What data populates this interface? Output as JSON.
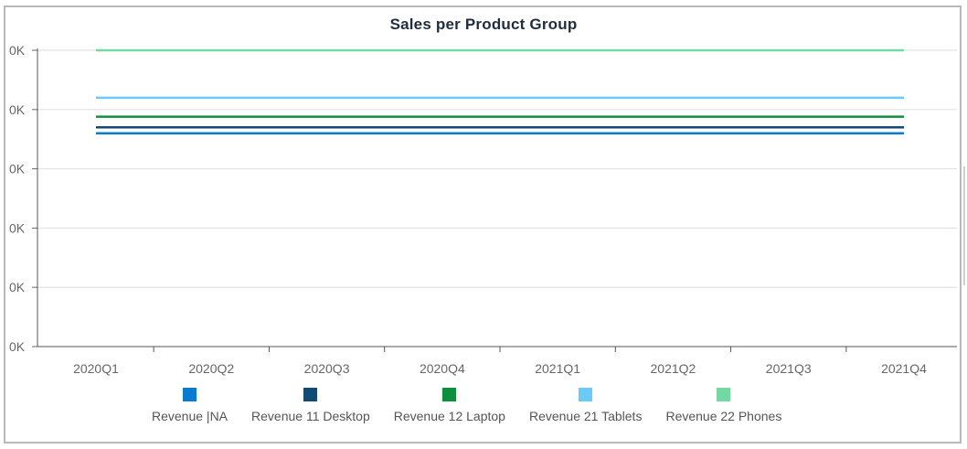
{
  "chart_data": {
    "type": "line",
    "title": "Sales per Product Group",
    "categories": [
      "2020Q1",
      "2020Q2",
      "2020Q3",
      "2020Q4",
      "2021Q1",
      "2021Q2",
      "2021Q3",
      "2021Q4"
    ],
    "y_tick_labels": [
      "0K",
      "0K",
      "0K",
      "0K",
      "0K",
      "0K"
    ],
    "ylim": [
      0,
      5
    ],
    "grid": true,
    "legend_position": "bottom",
    "series": [
      {
        "name": "Revenue |NA",
        "color": "#0a7bd1",
        "values": [
          3.6,
          3.6,
          3.6,
          3.6,
          3.6,
          3.6,
          3.6,
          3.6
        ]
      },
      {
        "name": "Revenue 11 Desktop",
        "color": "#114b74",
        "values": [
          3.7,
          3.7,
          3.7,
          3.7,
          3.7,
          3.7,
          3.7,
          3.7
        ]
      },
      {
        "name": "Revenue 12 Laptop",
        "color": "#0e8f3c",
        "values": [
          3.88,
          3.88,
          3.88,
          3.88,
          3.88,
          3.88,
          3.88,
          3.88
        ]
      },
      {
        "name": "Revenue 21 Tablets",
        "color": "#6ccaf6",
        "values": [
          4.2,
          4.2,
          4.2,
          4.2,
          4.2,
          4.2,
          4.2,
          4.2
        ]
      },
      {
        "name": "Revenue 22 Phones",
        "color": "#73d9a2",
        "values": [
          5.0,
          5.0,
          5.0,
          5.0,
          5.0,
          5.0,
          5.0,
          5.0
        ]
      }
    ]
  }
}
